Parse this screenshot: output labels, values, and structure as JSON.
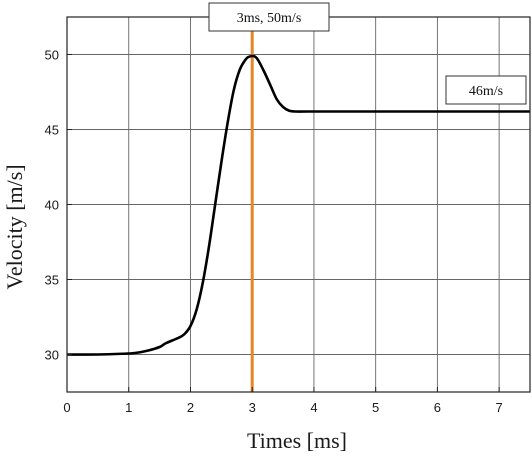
{
  "chart_data": {
    "type": "line",
    "title": "",
    "xlabel": "Times [ms]",
    "ylabel": "Velocity [m/s]",
    "xlim": [
      0,
      7.5
    ],
    "ylim": [
      27.5,
      52.5
    ],
    "xticks": [
      0,
      1,
      2,
      3,
      4,
      5,
      6,
      7
    ],
    "yticks": [
      30,
      35,
      40,
      45,
      50
    ],
    "grid": true,
    "series": [
      {
        "color": "#000000",
        "x": [
          0,
          0.5,
          0.9,
          1.1,
          1.3,
          1.5,
          1.6,
          1.8,
          1.9,
          2.0,
          2.1,
          2.2,
          2.3,
          2.4,
          2.5,
          2.6,
          2.7,
          2.8,
          2.9,
          2.95,
          3.0,
          3.05,
          3.1,
          3.2,
          3.3,
          3.4,
          3.5,
          3.6,
          3.7,
          3.9,
          4.5,
          5.5,
          6.5,
          7.5
        ],
        "y": [
          30,
          30,
          30.05,
          30.1,
          30.25,
          30.5,
          30.75,
          31.1,
          31.35,
          31.9,
          33.0,
          34.8,
          37.2,
          40.0,
          42.8,
          45.4,
          47.6,
          49.0,
          49.7,
          49.85,
          49.9,
          49.85,
          49.6,
          48.8,
          47.9,
          47.0,
          46.5,
          46.25,
          46.2,
          46.2,
          46.2,
          46.2,
          46.2,
          46.2
        ]
      }
    ],
    "marker_line": {
      "x": 3.0,
      "color": "#e8842a"
    },
    "annotations": [
      {
        "text": "3ms, 50m/s"
      },
      {
        "text": "46m/s"
      }
    ]
  }
}
